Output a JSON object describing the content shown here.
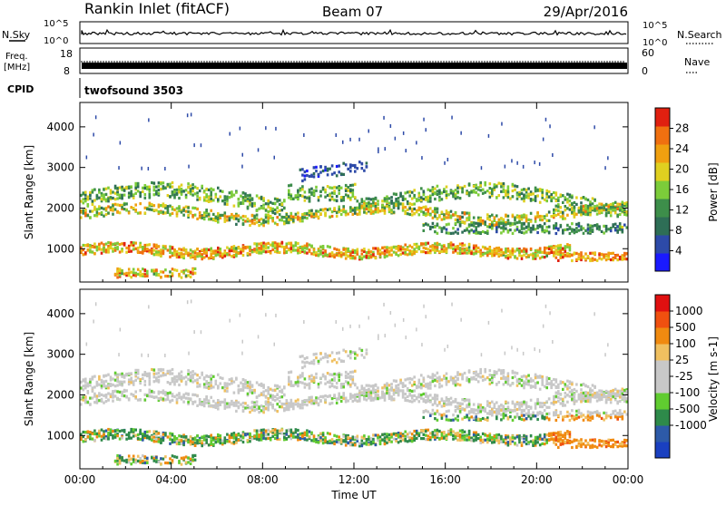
{
  "header": {
    "title": "Rankin Inlet (fitACF)",
    "beam": "Beam 07",
    "date": "29/Apr/2016"
  },
  "top_panels": {
    "nsky_label": "N.Sky",
    "nsearch_label": "N.Search",
    "nsky_left_ticks": [
      "10^5",
      "10^0"
    ],
    "nsky_right_ticks": [
      "10^5",
      "10^0"
    ],
    "freq_label_line1": "Freq.",
    "freq_label_line2": "[MHz]",
    "freq_ticks": [
      "18",
      "8"
    ],
    "nave_label": "Nave",
    "nave_ticks": [
      "60",
      "0"
    ],
    "cpid_label": "CPID",
    "cpid_value": "twofsound 3503"
  },
  "colors": {
    "power_scale": [
      "#1a1aff",
      "#2d4aa8",
      "#2e6e56",
      "#3d8e4a",
      "#7ccc3a",
      "#e0d020",
      "#f0a010",
      "#f07010",
      "#e02010"
    ],
    "velocity_scale": [
      "#e01010",
      "#f05010",
      "#f08a10",
      "#f0c060",
      "#c8c8c8",
      "#c8c8c8",
      "#60cc30",
      "#2e8a4a",
      "#2d5aa8",
      "#1a40c0"
    ]
  },
  "chart_data": [
    {
      "type": "heatmap",
      "name": "power-panel",
      "xlabel": "",
      "ylabel": "Slant Range [km]",
      "xlim": [
        "00:00",
        "24:00"
      ],
      "ylim": [
        180,
        4600
      ],
      "yticks": [
        1000,
        2000,
        3000,
        4000
      ],
      "colorbar_label": "Power [dB]",
      "colorbar_ticks": [
        4,
        8,
        12,
        16,
        20,
        24,
        28
      ],
      "colorbar_range": [
        0,
        32
      ]
    },
    {
      "type": "heatmap",
      "name": "velocity-panel",
      "xlabel": "Time UT",
      "ylabel": "Slant Range [km]",
      "xlim": [
        "00:00",
        "24:00"
      ],
      "ylim": [
        180,
        4600
      ],
      "xticks": [
        "00:00",
        "04:00",
        "08:00",
        "12:00",
        "16:00",
        "20:00",
        "00:00"
      ],
      "yticks": [
        1000,
        2000,
        3000,
        4000
      ],
      "colorbar_label": "Velocity [m s-1]",
      "colorbar_ticks": [
        1000,
        500,
        100,
        25,
        -25,
        -100,
        -500,
        -1000
      ]
    }
  ]
}
